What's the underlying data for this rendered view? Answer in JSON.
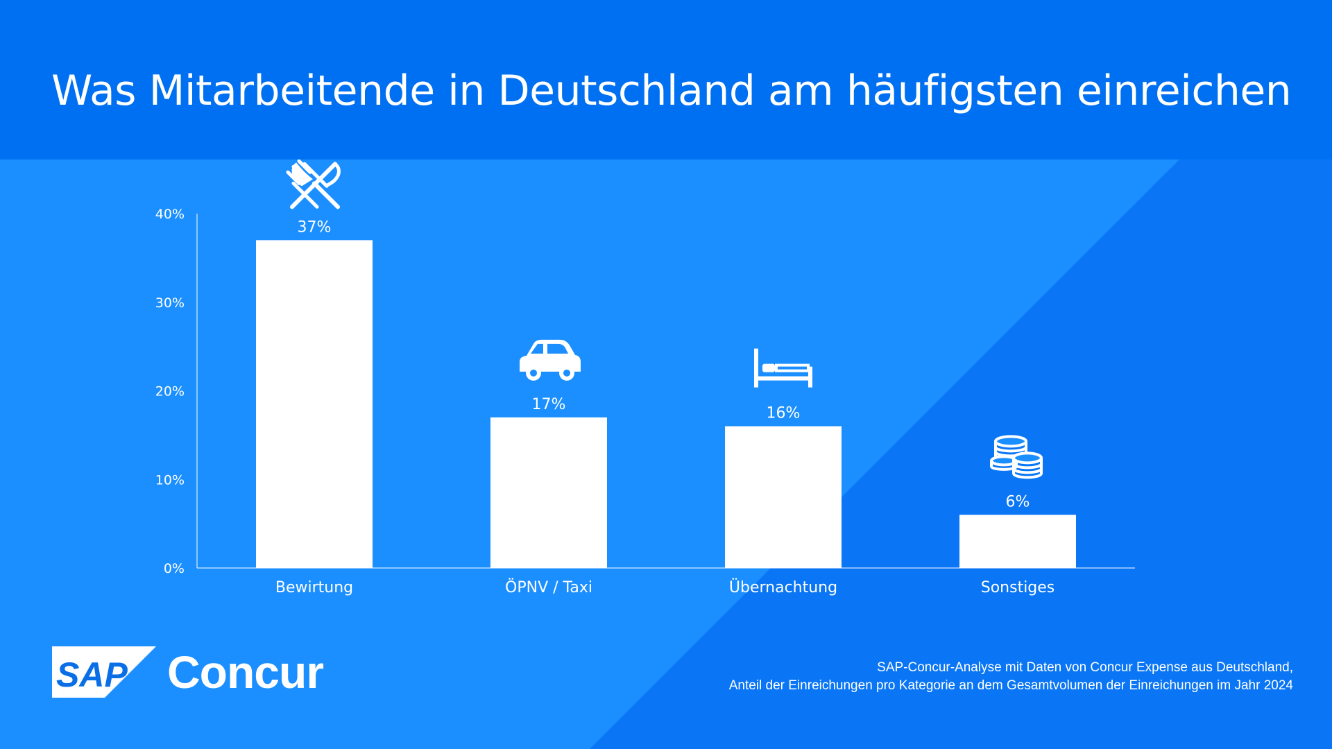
{
  "header": {
    "title": "Was Mitarbeitende in Deutschland am häufigsten einreichen"
  },
  "colors": {
    "header_bg": "#0070F2",
    "panel_light": "#1B8FFF",
    "panel_dark": "#0A76F5",
    "bars": "#FFFFFF"
  },
  "chart_data": {
    "type": "bar",
    "categories": [
      "Bewirtung",
      "ÖPNV / Taxi",
      "Übernachtung",
      "Sonstiges"
    ],
    "values": [
      37,
      17,
      16,
      6
    ],
    "value_labels": [
      "37%",
      "17%",
      "16%",
      "6%"
    ],
    "icons": [
      "fork-knife-icon",
      "car-icon",
      "bed-icon",
      "coins-icon"
    ],
    "yticks": [
      0,
      10,
      20,
      30,
      40
    ],
    "ytick_labels": [
      "0%",
      "10%",
      "20%",
      "30%",
      "40%"
    ],
    "ylim": [
      0,
      40
    ],
    "title": "",
    "xlabel": "",
    "ylabel": "",
    "grid": false,
    "legend": "none"
  },
  "footer": {
    "logo_badge": "SAP",
    "logo_text": "Concur",
    "source_line1": "SAP-Concur-Analyse mit Daten von Concur Expense aus Deutschland,",
    "source_line2": "Anteil der Einreichungen pro Kategorie an dem Gesamtvolumen der Einreichungen im Jahr 2024"
  }
}
